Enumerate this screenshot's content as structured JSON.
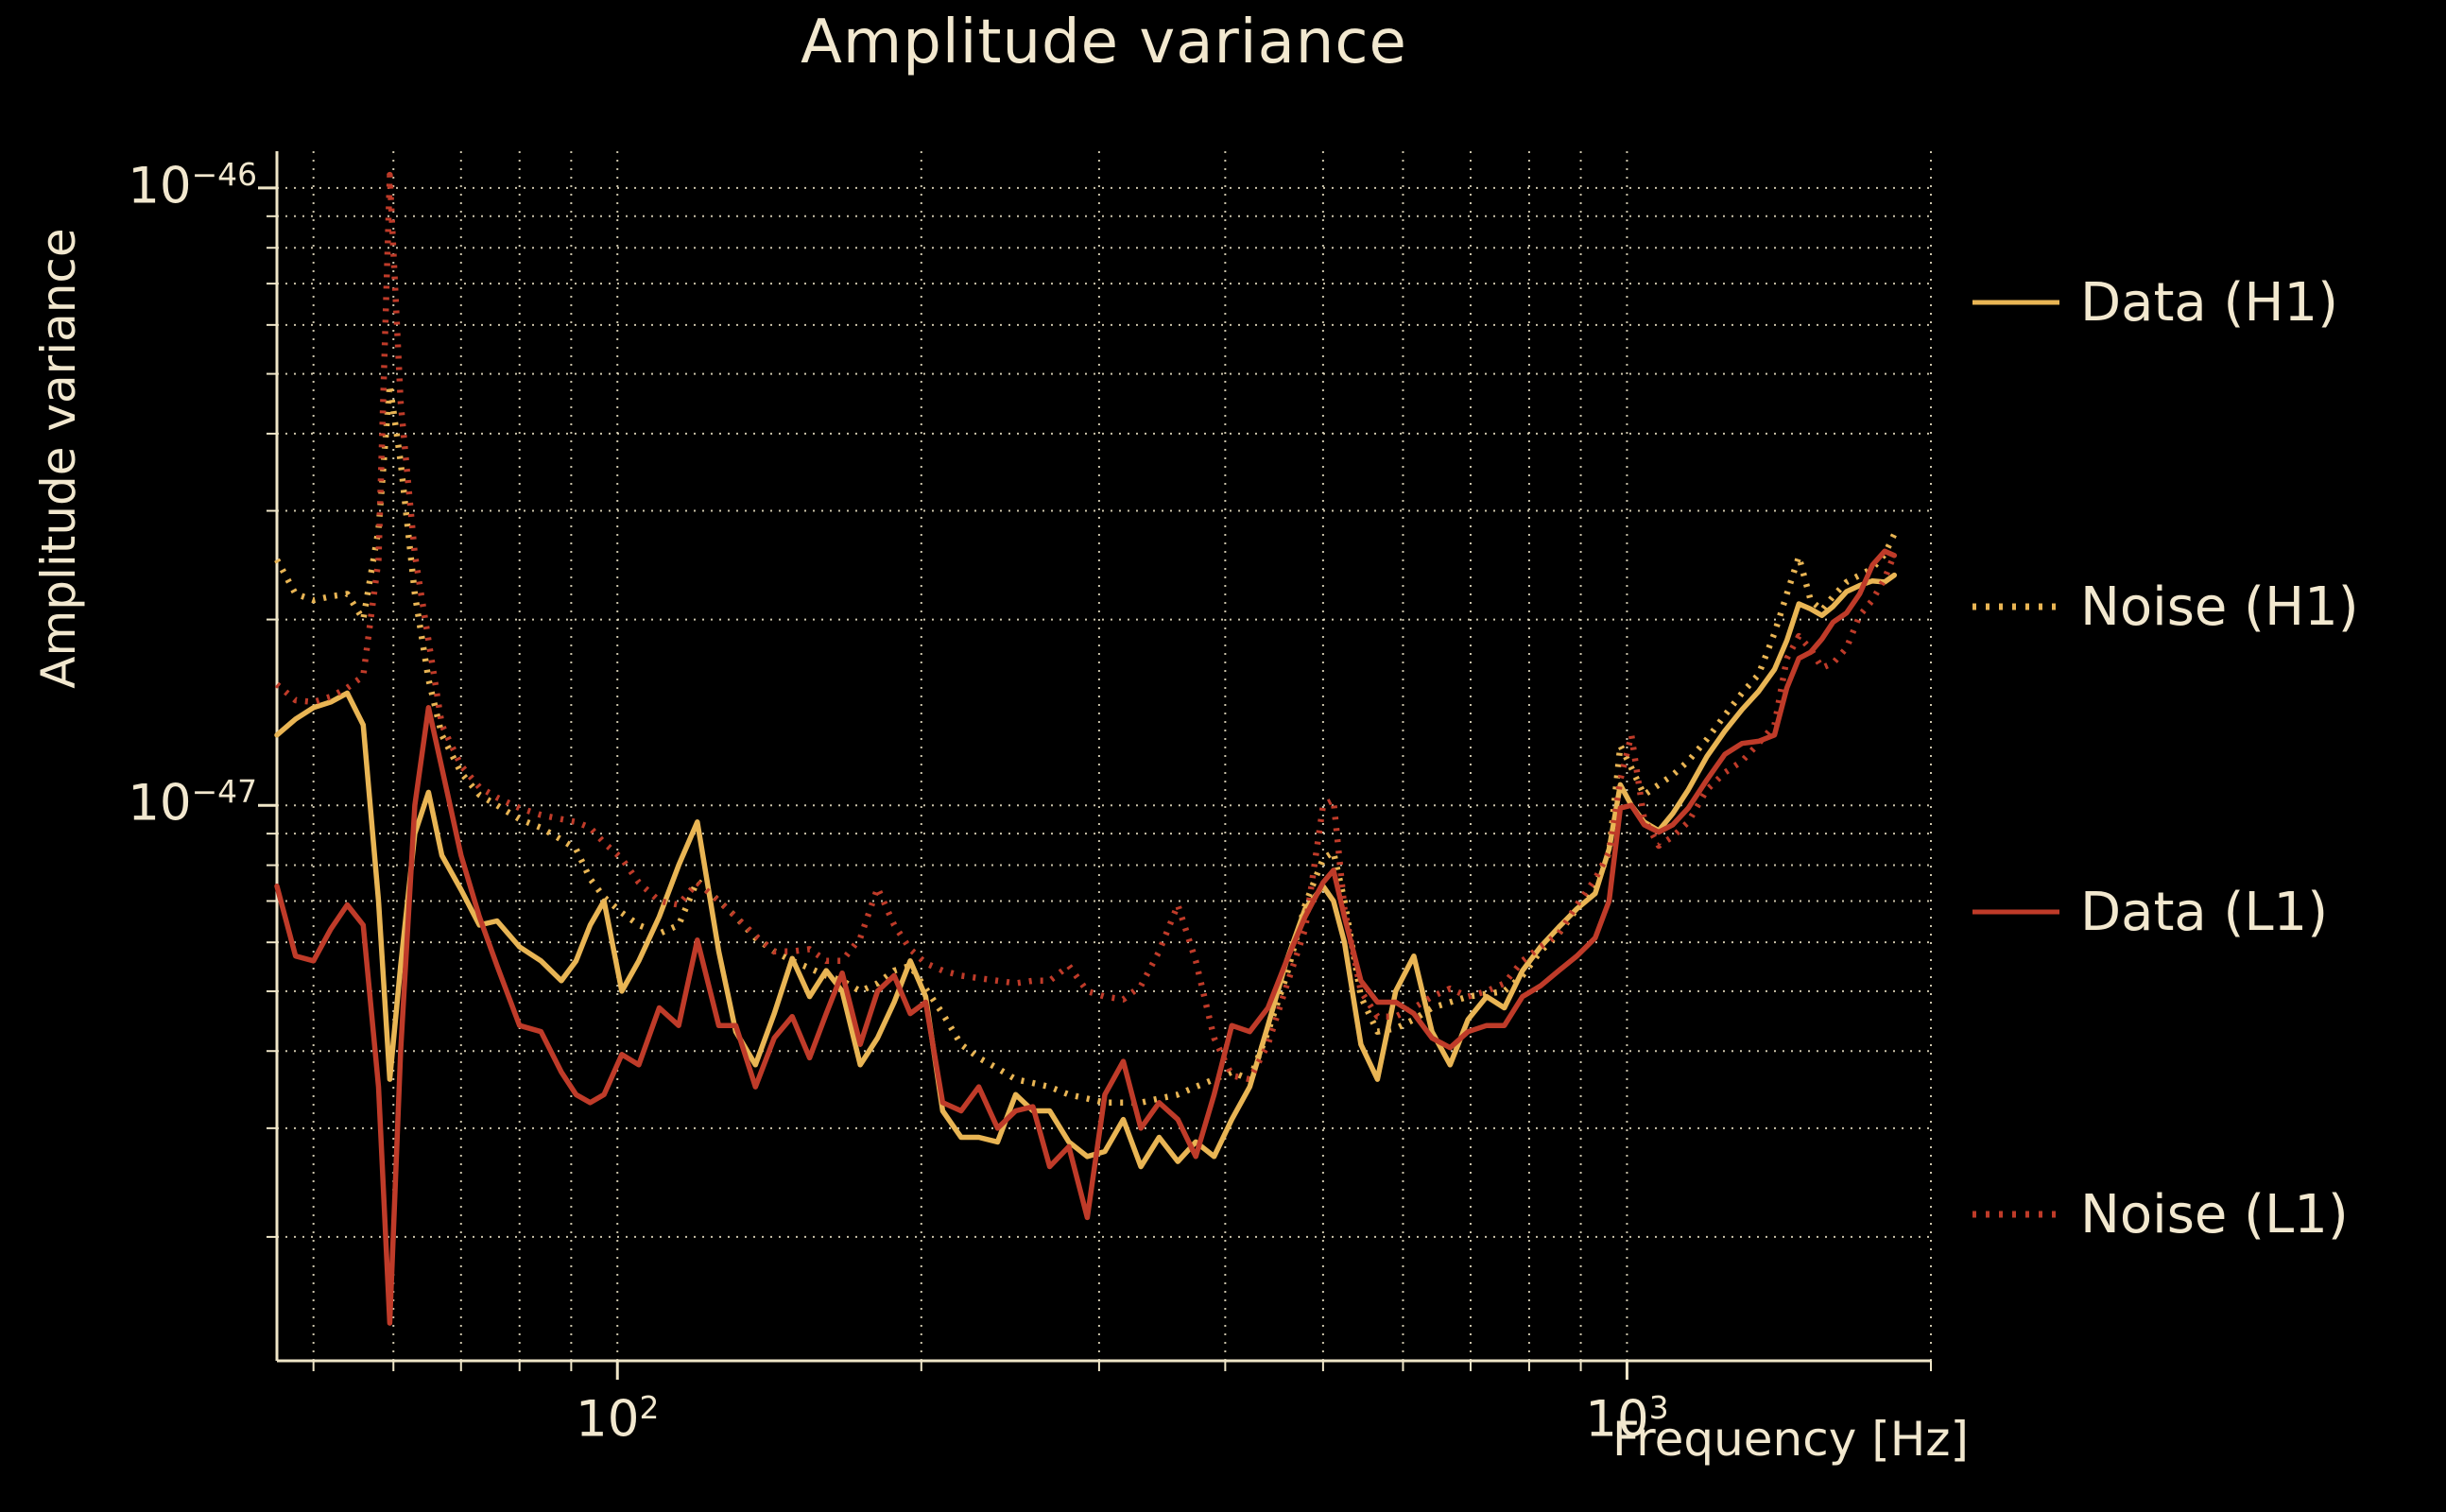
{
  "title": "Amplitude variance",
  "axes": {
    "x_label": "Frequency [Hz]",
    "y_label": "Amplitude variance",
    "x_ticks": [
      {
        "base": "10",
        "exp": "2",
        "value": 100
      },
      {
        "base": "10",
        "exp": "3",
        "value": 1000
      }
    ],
    "y_ticks": [
      {
        "base": "10",
        "exp": "−46",
        "value": 1e-46
      },
      {
        "base": "10",
        "exp": "−47",
        "value": 1e-47
      }
    ]
  },
  "colors": {
    "background": "#000000",
    "text": "#f2e8cf",
    "grid": "#efe6c8",
    "spine": "#efe6c8",
    "h1_gold": "#e9b554",
    "l1_red": "#bf3b29"
  },
  "chart_data": {
    "type": "line",
    "title": "Amplitude variance",
    "xlabel": "Frequency [Hz]",
    "ylabel": "Amplitude variance",
    "x_scale": "log",
    "y_scale": "log",
    "xlim": [
      46,
      2000
    ],
    "ylim": [
      1.26e-48,
      1.147e-46
    ],
    "grid": true,
    "legend_position": "right",
    "x_gridlines": [
      50,
      60,
      70,
      80,
      90,
      100,
      200,
      300,
      400,
      500,
      600,
      700,
      800,
      900,
      1000,
      2000
    ],
    "x_major_ticks": [
      100,
      1000
    ],
    "y_gridlines": [
      1e-46,
      9e-47,
      8e-47,
      7e-47,
      6e-47,
      5e-47,
      4e-47,
      3e-47,
      2e-47,
      1e-47,
      9e-48,
      8e-48,
      7e-48,
      6e-48,
      5e-48,
      4e-48,
      3e-48,
      2e-48
    ],
    "y_major_ticks": [
      1e-46,
      1e-47
    ],
    "value_unit": "1e-48",
    "frequencies_hz": [
      46,
      48,
      50,
      52,
      54,
      56,
      58,
      59.5,
      61,
      63,
      65,
      67,
      70,
      73,
      76,
      80,
      84,
      88,
      91,
      94,
      97,
      101,
      105,
      110,
      115,
      120,
      126,
      131,
      137,
      143,
      149,
      155,
      161,
      167,
      174,
      181,
      188,
      195,
      202,
      210,
      219,
      228,
      238,
      248,
      258,
      268,
      280,
      292,
      304,
      317,
      330,
      344,
      359,
      374,
      390,
      406,
      423,
      441,
      460,
      480,
      500,
      512,
      525,
      545,
      566,
      590,
      615,
      641,
      668,
      696,
      726,
      756,
      788,
      821,
      856,
      892,
      930,
      960,
      985,
      1010,
      1040,
      1075,
      1110,
      1150,
      1200,
      1250,
      1300,
      1350,
      1400,
      1440,
      1480,
      1520,
      1560,
      1600,
      1650,
      1700,
      1750,
      1800,
      1840
    ],
    "series": [
      {
        "name": "Data (H1)",
        "color": "#e9b554",
        "style": "solid",
        "values_1e48": [
          13.0,
          13.8,
          14.4,
          14.7,
          15.2,
          13.5,
          7.0,
          3.6,
          5.5,
          9.0,
          10.5,
          8.3,
          7.3,
          6.4,
          6.5,
          5.9,
          5.6,
          5.2,
          5.6,
          6.4,
          7.0,
          5.0,
          5.6,
          6.6,
          8.0,
          9.4,
          5.8,
          4.3,
          3.8,
          4.6,
          5.65,
          4.9,
          5.4,
          5.0,
          3.8,
          4.2,
          4.8,
          5.6,
          4.9,
          3.2,
          2.9,
          2.9,
          2.85,
          3.4,
          3.2,
          3.2,
          2.85,
          2.7,
          2.75,
          3.1,
          2.6,
          2.9,
          2.65,
          2.85,
          2.7,
          3.1,
          3.5,
          4.4,
          5.6,
          6.8,
          7.4,
          7.0,
          6.0,
          4.1,
          3.6,
          5.0,
          5.7,
          4.3,
          3.8,
          4.5,
          4.9,
          4.7,
          5.4,
          5.9,
          6.35,
          6.8,
          7.2,
          8.5,
          10.8,
          10.0,
          9.4,
          9.1,
          9.7,
          10.6,
          12.0,
          13.2,
          14.3,
          15.3,
          16.6,
          18.5,
          21.2,
          20.8,
          20.3,
          21.0,
          22.2,
          22.7,
          23.1,
          23.0,
          23.6
        ]
      },
      {
        "name": "Noise (H1)",
        "color": "#e9b554",
        "style": "dotted",
        "values_1e48": [
          25.0,
          22.0,
          21.5,
          21.8,
          22.0,
          20.0,
          28.0,
          48.0,
          36.0,
          22.0,
          16.0,
          13.0,
          11.3,
          10.4,
          10.0,
          9.5,
          9.2,
          8.8,
          8.5,
          7.6,
          7.1,
          6.7,
          6.4,
          6.2,
          6.4,
          7.55,
          7.0,
          6.6,
          6.1,
          5.8,
          5.6,
          5.45,
          5.3,
          5.2,
          5.0,
          5.15,
          5.4,
          5.5,
          5.05,
          4.6,
          4.1,
          3.9,
          3.75,
          3.6,
          3.55,
          3.5,
          3.4,
          3.35,
          3.3,
          3.3,
          3.3,
          3.35,
          3.4,
          3.5,
          3.6,
          3.7,
          3.6,
          4.3,
          5.3,
          6.9,
          8.2,
          8.4,
          7.0,
          4.9,
          4.3,
          4.35,
          4.5,
          4.7,
          4.8,
          4.9,
          4.95,
          5.0,
          5.3,
          5.8,
          6.2,
          6.8,
          7.4,
          8.4,
          12.5,
          11.5,
          10.4,
          10.8,
          11.2,
          11.8,
          12.8,
          14.0,
          15.2,
          16.3,
          19.0,
          22.0,
          25.3,
          21.5,
          20.7,
          21.8,
          23.0,
          23.6,
          24.2,
          25.5,
          27.5
        ]
      },
      {
        "name": "Data (L1)",
        "color": "#bf3b29",
        "style": "solid",
        "values_1e48": [
          7.4,
          5.7,
          5.6,
          6.3,
          6.9,
          6.4,
          3.5,
          1.45,
          4.0,
          10.0,
          14.4,
          11.5,
          8.3,
          6.6,
          5.5,
          4.4,
          4.3,
          3.7,
          3.4,
          3.3,
          3.4,
          3.95,
          3.8,
          4.7,
          4.4,
          6.05,
          4.4,
          4.4,
          3.5,
          4.2,
          4.55,
          3.9,
          4.6,
          5.35,
          4.1,
          5.0,
          5.3,
          4.6,
          4.8,
          3.3,
          3.2,
          3.5,
          3.0,
          3.2,
          3.25,
          2.6,
          2.8,
          2.15,
          3.4,
          3.85,
          3.0,
          3.3,
          3.1,
          2.7,
          3.4,
          4.4,
          4.3,
          4.7,
          5.6,
          6.6,
          7.5,
          7.85,
          6.6,
          5.2,
          4.8,
          4.8,
          4.6,
          4.2,
          4.05,
          4.3,
          4.4,
          4.4,
          4.9,
          5.1,
          5.4,
          5.7,
          6.1,
          7.0,
          9.9,
          10.0,
          9.3,
          9.05,
          9.3,
          9.9,
          11.0,
          12.1,
          12.6,
          12.7,
          13.0,
          15.5,
          17.3,
          17.7,
          18.6,
          19.8,
          20.5,
          22.0,
          24.5,
          25.8,
          25.4
        ]
      },
      {
        "name": "Noise (L1)",
        "color": "#bf3b29",
        "style": "dotted",
        "values_1e48": [
          15.7,
          14.8,
          14.7,
          15.0,
          15.5,
          16.2,
          25.0,
          105.0,
          45.0,
          25.5,
          18.5,
          13.5,
          11.6,
          10.7,
          10.3,
          9.9,
          9.65,
          9.5,
          9.4,
          9.2,
          8.7,
          8.2,
          7.5,
          7.0,
          6.9,
          7.5,
          7.0,
          6.6,
          6.15,
          5.8,
          5.8,
          5.85,
          5.6,
          5.6,
          6.1,
          7.35,
          6.4,
          5.85,
          5.55,
          5.4,
          5.3,
          5.25,
          5.2,
          5.15,
          5.2,
          5.2,
          5.5,
          5.0,
          4.9,
          4.85,
          5.1,
          5.8,
          6.9,
          5.6,
          4.2,
          3.65,
          3.6,
          4.1,
          5.1,
          6.3,
          10.0,
          10.2,
          6.8,
          5.0,
          4.55,
          4.55,
          4.7,
          4.9,
          5.05,
          4.9,
          5.0,
          5.15,
          5.6,
          5.9,
          6.2,
          6.9,
          7.6,
          8.4,
          11.0,
          13.0,
          9.5,
          8.6,
          8.9,
          9.4,
          10.6,
          11.3,
          11.8,
          12.6,
          13.5,
          17.3,
          18.8,
          17.9,
          16.7,
          17.0,
          18.0,
          20.3,
          21.5,
          23.3,
          25.5
        ]
      }
    ]
  }
}
